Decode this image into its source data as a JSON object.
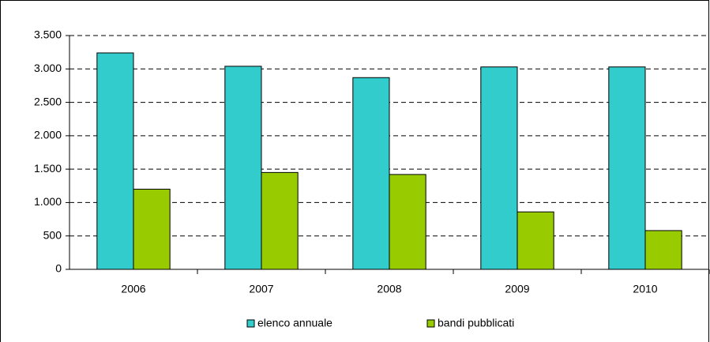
{
  "chart_data": {
    "type": "bar",
    "categories": [
      "2006",
      "2007",
      "2008",
      "2009",
      "2010"
    ],
    "series": [
      {
        "name": "elenco annuale",
        "color": "#33cccc",
        "values": [
          3240,
          3040,
          2870,
          3030,
          3030
        ]
      },
      {
        "name": "bandi pubblicati",
        "color": "#99cc00",
        "values": [
          1200,
          1450,
          1420,
          860,
          580
        ]
      }
    ],
    "ylim": [
      0,
      3500
    ],
    "yticks": [
      0,
      500,
      {
        "value": 1000,
        "label": "1.000"
      },
      {
        "value": 1500,
        "label": "1.500"
      },
      {
        "value": 2000,
        "label": "2.000"
      },
      {
        "value": 2500,
        "label": "2.500"
      },
      {
        "value": 3000,
        "label": "3.000"
      },
      {
        "value": 3500,
        "label": "3.500"
      }
    ],
    "grid": true,
    "legend": "bottom"
  }
}
